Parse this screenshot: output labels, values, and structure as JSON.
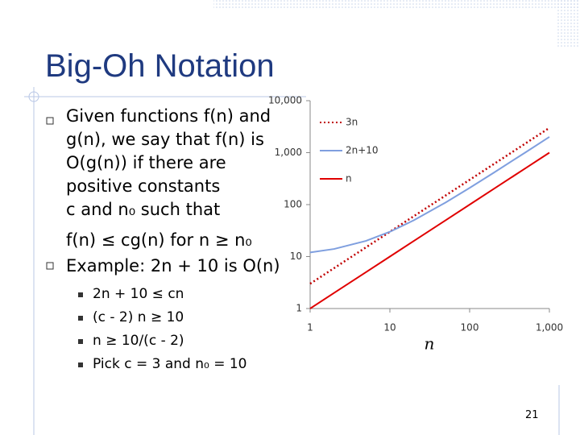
{
  "title": "Big-Oh Notation",
  "bullets": [
    {
      "lines": [
        "Given functions f(n) and",
        "g(n), we say that f(n) is",
        "O(g(n)) if there are",
        "positive constants",
        "c and n₀ such that"
      ],
      "formula": "f(n) ≤ cg(n) for n ≥ n₀"
    },
    {
      "lines": [
        "Example: 2n + 10 is O(n)"
      ],
      "sub_bullets": [
        "2n + 10 ≤ cn",
        "(c - 2) n ≥ 10",
        "n ≥ 10/(c - 2)",
        "Pick c = 3 and n₀ = 10"
      ]
    }
  ],
  "page_number": "21",
  "chart_data": {
    "type": "line",
    "x_label": "n",
    "x": [
      1,
      2,
      5,
      10,
      20,
      50,
      100,
      200,
      500,
      1000
    ],
    "series": [
      {
        "name": "3n",
        "color": "#c00000",
        "dash": "dotted",
        "values": [
          3,
          6,
          15,
          30,
          60,
          150,
          300,
          600,
          1500,
          3000
        ]
      },
      {
        "name": "2n+10",
        "color": "#7f9fdf",
        "dash": "solid",
        "values": [
          12,
          14,
          20,
          30,
          50,
          110,
          210,
          410,
          1010,
          2010
        ]
      },
      {
        "name": "n",
        "color": "#e00000",
        "dash": "solid",
        "values": [
          1,
          2,
          5,
          10,
          20,
          50,
          100,
          200,
          500,
          1000
        ]
      }
    ],
    "xlim": [
      1,
      1000
    ],
    "xticks": [
      1,
      10,
      100,
      {
        "value": 1000,
        "label": "1,000"
      }
    ],
    "ylim": [
      1,
      10000
    ],
    "yticks": [
      1,
      10,
      100,
      {
        "value": 1000,
        "label": "1,000"
      },
      {
        "value": 10000,
        "label": "10,000"
      }
    ],
    "log_x": true,
    "log_y": true,
    "grid": false,
    "legend": "upper left"
  }
}
